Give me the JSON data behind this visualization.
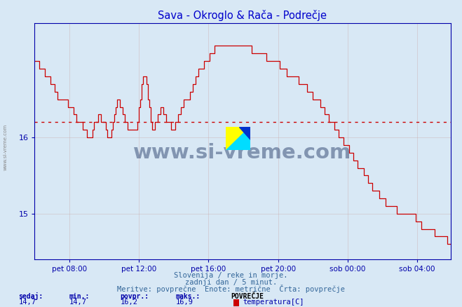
{
  "title": "Sava - Okroglo & Rača - Podrečje",
  "title_color": "#0000cc",
  "bg_color": "#d8e8f5",
  "plot_bg_color": "#d8e8f5",
  "line_color": "#cc0000",
  "avg_line_color": "#cc0000",
  "avg_line_value": 16.2,
  "grid_color": "#c8a0a0",
  "axis_color": "#0000aa",
  "xlabel_labels": [
    "pet 08:00",
    "pet 12:00",
    "pet 16:00",
    "pet 20:00",
    "sob 00:00",
    "sob 04:00"
  ],
  "yticks": [
    15,
    16
  ],
  "ymin": 14.4,
  "ymax": 17.5,
  "sedaj": "14,7",
  "min_val": "14,7",
  "povpr": "16,2",
  "maks": "16,9",
  "footer_line1": "Slovenija / reke in morje.",
  "footer_line2": "zadnji dan / 5 minut.",
  "footer_line3": "Meritve: povprečne  Enote: metrične  Črta: povprečje",
  "watermark_text": "www.si-vreme.com",
  "legend_label": "temperatura[C]",
  "n_points": 288,
  "sidebar_text": "www.si-vreme.com",
  "total_hours": 24,
  "start_hour": 6
}
